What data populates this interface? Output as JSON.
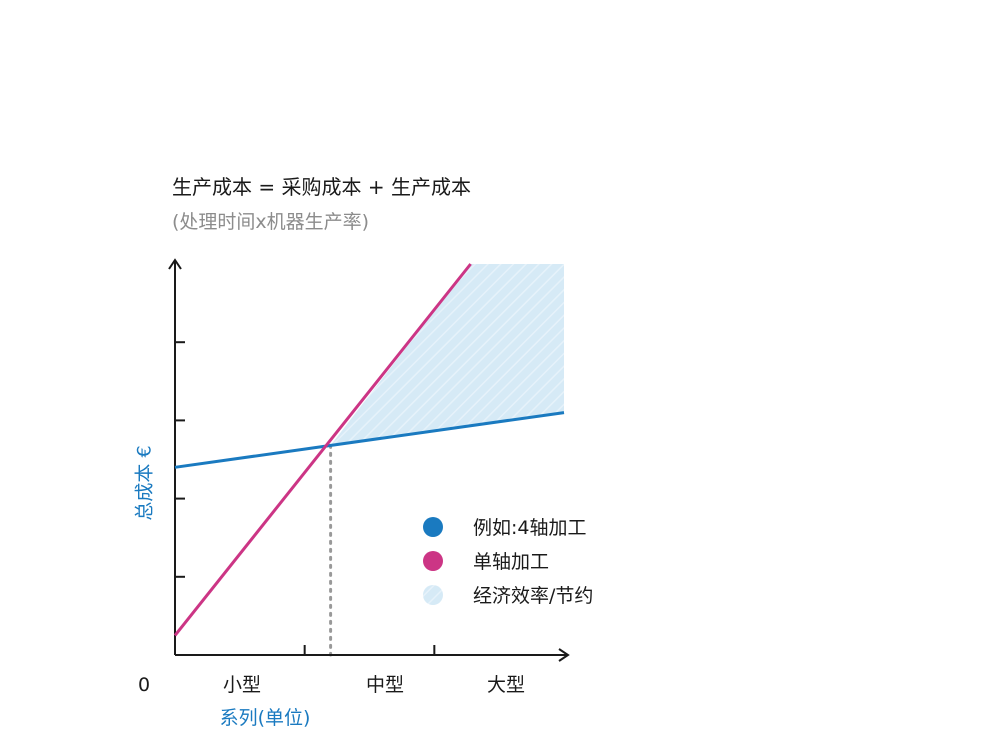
{
  "chart_data": {
    "type": "line",
    "title": "生产成本 = 采购成本 + 生产成本",
    "subtitle": "(处理时间x机器生产率)",
    "xlabel": "系列(单位)",
    "ylabel": "总成本 €",
    "origin_label": "0",
    "categories": [
      "小型",
      "中型",
      "大型"
    ],
    "x_range": [
      0,
      3
    ],
    "y_range": [
      0,
      5
    ],
    "y_ticks": [
      1,
      2,
      3,
      4
    ],
    "x_ticks": [
      1,
      2
    ],
    "grid": false,
    "legend_position": "right",
    "series": [
      {
        "name": "例如:4轴加工",
        "color": "#1a7ac0",
        "points": [
          [
            0,
            2.4
          ],
          [
            3,
            3.1
          ]
        ]
      },
      {
        "name": "单轴加工",
        "color": "#cc3585",
        "points": [
          [
            0,
            0.25
          ],
          [
            2.28,
            5.0
          ]
        ]
      }
    ],
    "intersection": {
      "x": 1.2,
      "y": 2.68
    },
    "shaded_area": {
      "name": "经济效率/节约",
      "color": "#d6eaf6",
      "x_range": [
        1.2,
        3
      ]
    },
    "colors": {
      "axis": "#1a1a1a",
      "dotted_line": "#999999"
    }
  }
}
